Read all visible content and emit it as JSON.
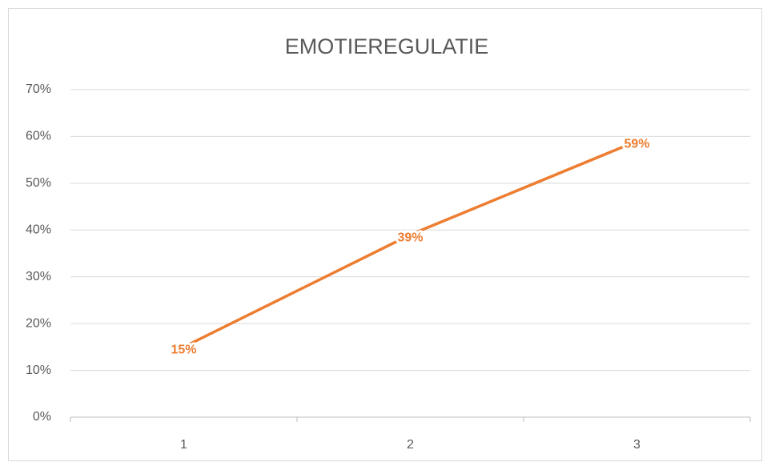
{
  "chart_data": {
    "type": "line",
    "title": "EMOTIEREGULATIE",
    "categories": [
      "1",
      "2",
      "3"
    ],
    "series": [
      {
        "name": "EMOTIEREGULATIE",
        "color": "#ed7d31",
        "values": [
          15,
          39,
          59
        ],
        "value_labels": [
          "15%",
          "39%",
          "59%"
        ]
      }
    ],
    "ylim": [
      0,
      70
    ],
    "yticks": [
      {
        "value": 0,
        "label": "0%"
      },
      {
        "value": 10,
        "label": "10%"
      },
      {
        "value": 20,
        "label": "20%"
      },
      {
        "value": 30,
        "label": "30%"
      },
      {
        "value": 40,
        "label": "40%"
      },
      {
        "value": 50,
        "label": "50%"
      },
      {
        "value": 60,
        "label": "60%"
      },
      {
        "value": 70,
        "label": "70%"
      }
    ],
    "grid": true
  }
}
